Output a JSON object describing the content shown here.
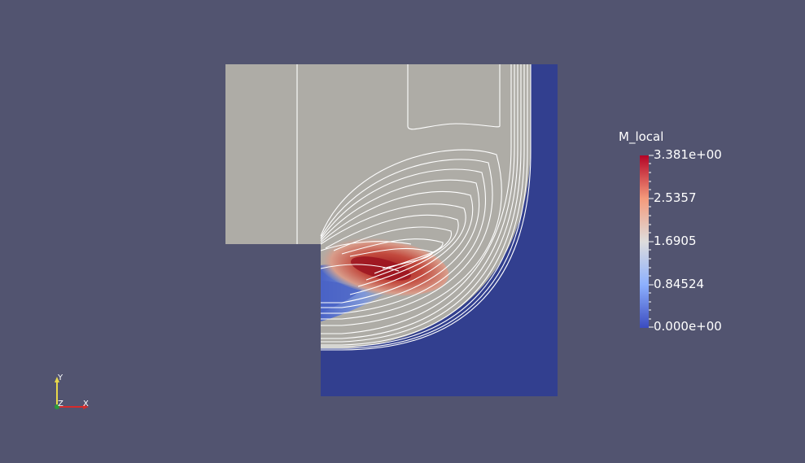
{
  "colorbar": {
    "title": "M_local",
    "ticks": [
      "3.381e+00",
      "2.5357",
      "1.6905",
      "0.84524",
      "0.000e+00"
    ],
    "min": 0.0,
    "max": 3.381,
    "colormap": [
      "#3b4cc0",
      "#8db0fe",
      "#dddcdc",
      "#f49a7b",
      "#b40426"
    ]
  },
  "orientation_axes": {
    "x": "X",
    "y": "Y",
    "z": "Z"
  },
  "colors": {
    "background": "#525470",
    "surface_gray": "#aeaca6",
    "low_blue": "#323f8f",
    "contour": "#ffffff",
    "x_axis": "#d62b2b",
    "y_axis": "#e8d84a",
    "z_axis": "#2a9a3a"
  }
}
